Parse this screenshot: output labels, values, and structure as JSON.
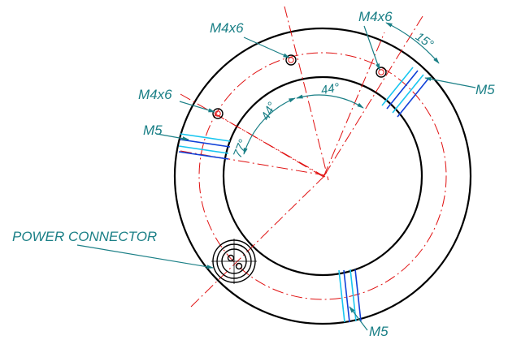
{
  "labels": {
    "m4x6_top": "M4x6",
    "m4x6_right": "M4x6",
    "m4x6_left": "M4x6",
    "m5_left": "M5",
    "m5_right": "M5",
    "m5_bottom": "M5",
    "power_connector": "POWER CONNECTOR",
    "angle_15": "15°",
    "angle_44_left": "44°",
    "angle_44_right": "44°",
    "angle_77": "77°"
  },
  "colors": {
    "annotation": "#1a7f86",
    "centerline": "#e01010",
    "outline": "#000000",
    "hole_cyan": "#19c6f0",
    "hole_blue": "#1040d8"
  }
}
